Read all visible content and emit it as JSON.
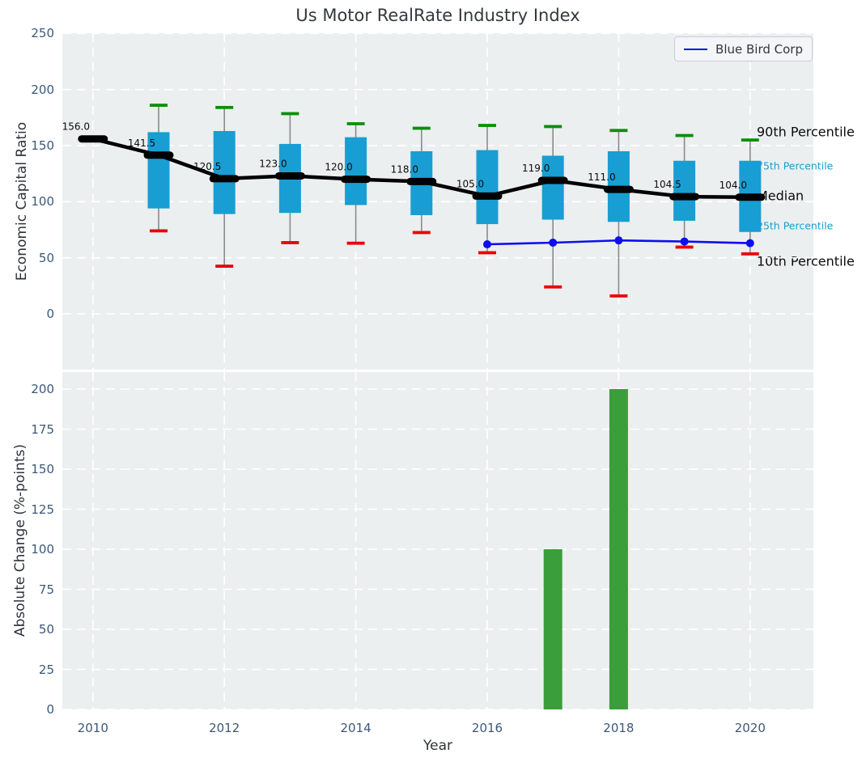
{
  "title": "Us Motor RealRate Industry Index",
  "legend": {
    "label": "Blue Bird Corp"
  },
  "axes": {
    "top_ylabel": "Economic Capital Ratio",
    "bottom_ylabel": "Absolute Change (%-points)",
    "xlabel": "Year"
  },
  "colors": {
    "plot_bg": "#eceff0",
    "grid": "#ffffff",
    "tick_label": "#3c5878",
    "title_text": "#33393e"
  },
  "chart_data": [
    {
      "type": "boxplot",
      "title": "Us Motor RealRate Industry Index",
      "ylabel": "Economic Capital Ratio",
      "yticks": [
        0,
        50,
        100,
        150,
        200,
        250
      ],
      "xticks": [
        2010,
        2012,
        2014,
        2016,
        2018,
        2020
      ],
      "ylim": [
        -50,
        250
      ],
      "legend_position": "upper right",
      "grid": true,
      "boxes": [
        {
          "year": 2010,
          "median": 156.0,
          "q1": null,
          "q3": null,
          "p10": null,
          "p90": null
        },
        {
          "year": 2011,
          "median": 141.5,
          "q1": 94,
          "q3": 162,
          "p10": 74,
          "p90": 186
        },
        {
          "year": 2012,
          "median": 120.5,
          "q1": 89,
          "q3": 163,
          "p10": 42.5,
          "p90": 184
        },
        {
          "year": 2013,
          "median": 123.0,
          "q1": 90,
          "q3": 151.5,
          "p10": 63.5,
          "p90": 178.5
        },
        {
          "year": 2014,
          "median": 120.0,
          "q1": 97,
          "q3": 157.5,
          "p10": 63,
          "p90": 169.5
        },
        {
          "year": 2015,
          "median": 118.0,
          "q1": 88,
          "q3": 145,
          "p10": 72.5,
          "p90": 165.5
        },
        {
          "year": 2016,
          "median": 105.0,
          "q1": 80,
          "q3": 146,
          "p10": 54.5,
          "p90": 168
        },
        {
          "year": 2017,
          "median": 119.0,
          "q1": 84,
          "q3": 141,
          "p10": 24,
          "p90": 167
        },
        {
          "year": 2018,
          "median": 111.0,
          "q1": 82,
          "q3": 145,
          "p10": 16,
          "p90": 163.5
        },
        {
          "year": 2019,
          "median": 104.5,
          "q1": 83,
          "q3": 136.5,
          "p10": 59.5,
          "p90": 159
        },
        {
          "year": 2020,
          "median": 104.0,
          "q1": 73,
          "q3": 136.5,
          "p10": 53.5,
          "p90": 155
        }
      ],
      "median_labels": [
        "156.0",
        "141.5",
        "120.5",
        "123.0",
        "120.0",
        "118.0",
        "105.0",
        "119.0",
        "111.0",
        "104.5",
        "104.0"
      ],
      "series": [
        {
          "name": "Blue Bird Corp",
          "x": [
            2016,
            2017,
            2018,
            2019,
            2020
          ],
          "values": [
            62.0,
            63.5,
            65.5,
            64.5,
            63.0
          ],
          "color": "#0d0df0"
        }
      ],
      "right_labels": [
        {
          "text": "90th Percentile",
          "value": 162.3,
          "size": "large",
          "color": "#0b0b0b"
        },
        {
          "text": "75th Percentile",
          "value": 132.0,
          "size": "small",
          "color": "#189ed3"
        },
        {
          "text": "Median",
          "value": 105.2,
          "size": "large",
          "color": "#0b0b0b"
        },
        {
          "text": "25th Percentile",
          "value": 78.6,
          "size": "small",
          "color": "#189ed3"
        },
        {
          "text": "10th Percentile",
          "value": 46.9,
          "size": "large",
          "color": "#0b0b0b"
        }
      ],
      "style_colors": {
        "box_fill": "#189ed3",
        "median_line": "#000000",
        "whisker": "#8a8a8a",
        "cap_top": "#0b8f0b",
        "cap_bottom": "#ea0006"
      }
    },
    {
      "type": "bar",
      "ylabel": "Absolute Change (%-points)",
      "xlabel": "Year",
      "categories": [
        2010,
        2011,
        2012,
        2013,
        2014,
        2015,
        2016,
        2017,
        2018,
        2019,
        2020
      ],
      "values": [
        0,
        0,
        0,
        0,
        0,
        0,
        0,
        100,
        200,
        0,
        0
      ],
      "yticks": [
        0,
        25,
        50,
        75,
        100,
        125,
        150,
        175,
        200
      ],
      "xticks": [
        2010,
        2012,
        2014,
        2016,
        2018,
        2020
      ],
      "ylim": [
        0,
        210
      ],
      "grid": true,
      "bar_color": "#3a9e3a"
    }
  ]
}
